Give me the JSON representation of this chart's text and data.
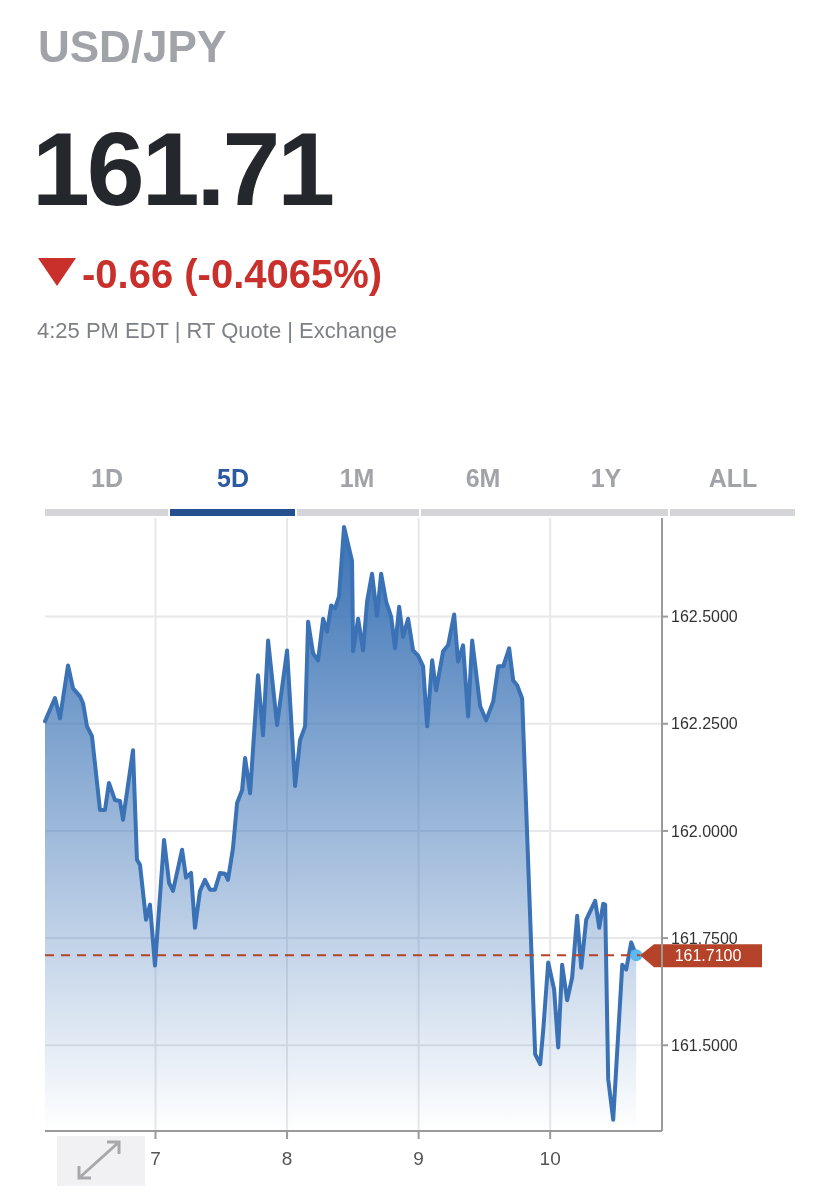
{
  "chart_data": {
    "type": "area",
    "title": "USD/JPY",
    "subtitle": "161.71",
    "annotations": [
      "-0.66 (-0.4065%)",
      "4:25 PM EDT | RT Quote | Exchange",
      "1D",
      "5D",
      "1M",
      "6M",
      "1Y",
      "ALL"
    ],
    "series": [
      {
        "color": "#3a72b5",
        "x": [
          6.16,
          6.236,
          6.274,
          6.335,
          6.373,
          6.426,
          6.449,
          6.479,
          6.517,
          6.578,
          6.616,
          6.646,
          6.692,
          6.73,
          6.753,
          6.829,
          6.859,
          6.882,
          6.928,
          6.958,
          6.996,
          7.065,
          7.103,
          7.133,
          7.202,
          7.232,
          7.27,
          7.3,
          7.338,
          7.376,
          7.414,
          7.452,
          7.49,
          7.529,
          7.551,
          7.589,
          7.62,
          7.658,
          7.681,
          7.719,
          7.779,
          7.817,
          7.856,
          7.924,
          8.0,
          8.061,
          8.099,
          8.137,
          8.16,
          8.198,
          8.236,
          8.274,
          8.304,
          8.335,
          8.365,
          8.395,
          8.433,
          8.494,
          8.502,
          8.54,
          8.578,
          8.608,
          8.646,
          8.684,
          8.715,
          8.753,
          8.791,
          8.821,
          8.852,
          8.882,
          8.92,
          8.958,
          8.996,
          9.034,
          9.065,
          9.103,
          9.133,
          9.186,
          9.224,
          9.27,
          9.3,
          9.338,
          9.376,
          9.407,
          9.468,
          9.513,
          9.567,
          9.605,
          9.643,
          9.688,
          9.719,
          9.749,
          9.787,
          9.886,
          9.924,
          9.947,
          9.985,
          10.03,
          10.061,
          10.091,
          10.129,
          10.167,
          10.205,
          10.236,
          10.274,
          10.342,
          10.373,
          10.403,
          10.418,
          10.441,
          10.479,
          10.548,
          10.578,
          10.616,
          10.654
        ],
        "values": [
          162.256,
          162.31,
          162.263,
          162.386,
          162.333,
          162.314,
          162.298,
          162.244,
          162.221,
          162.049,
          162.049,
          162.112,
          162.072,
          162.07,
          162.026,
          162.188,
          161.933,
          161.921,
          161.793,
          161.828,
          161.686,
          161.979,
          161.879,
          161.86,
          161.956,
          161.891,
          161.902,
          161.774,
          161.86,
          161.886,
          161.863,
          161.863,
          161.902,
          161.9,
          161.886,
          161.96,
          162.065,
          162.095,
          162.17,
          162.088,
          162.363,
          162.223,
          162.444,
          162.247,
          162.421,
          162.105,
          162.212,
          162.244,
          162.488,
          162.414,
          162.398,
          162.495,
          162.465,
          162.526,
          162.519,
          162.547,
          162.709,
          162.63,
          162.419,
          162.495,
          162.421,
          162.535,
          162.6,
          162.502,
          162.6,
          162.535,
          162.5,
          162.426,
          162.523,
          162.453,
          162.495,
          162.421,
          162.409,
          162.384,
          162.244,
          162.398,
          162.328,
          162.419,
          162.433,
          162.505,
          162.395,
          162.433,
          162.267,
          162.444,
          162.291,
          162.258,
          162.302,
          162.384,
          162.384,
          162.426,
          162.351,
          162.34,
          162.309,
          161.479,
          161.456,
          161.535,
          161.693,
          161.63,
          161.495,
          161.688,
          161.605,
          161.658,
          161.802,
          161.681,
          161.793,
          161.837,
          161.774,
          161.83,
          161.828,
          161.421,
          161.326,
          161.688,
          161.677,
          161.74,
          161.71
        ]
      }
    ],
    "xlim": [
      6.16,
      10.85
    ],
    "xticks": [
      7,
      8,
      9,
      10
    ],
    "ylim": [
      161.3,
      162.73
    ],
    "yticks": [
      {
        "value": 161.5,
        "label": "161.5000"
      },
      {
        "value": 161.75,
        "label": "161.7500"
      },
      {
        "value": 162,
        "label": "162.0000"
      },
      {
        "value": 162.25,
        "label": "162.2500"
      },
      {
        "value": 162.5,
        "label": "162.5000"
      }
    ],
    "ref_lines": [
      {
        "axis": "y",
        "value": 161.71,
        "label": "161.7100",
        "color": "#b5432a",
        "line_style": "dashed"
      }
    ],
    "grid": true
  }
}
